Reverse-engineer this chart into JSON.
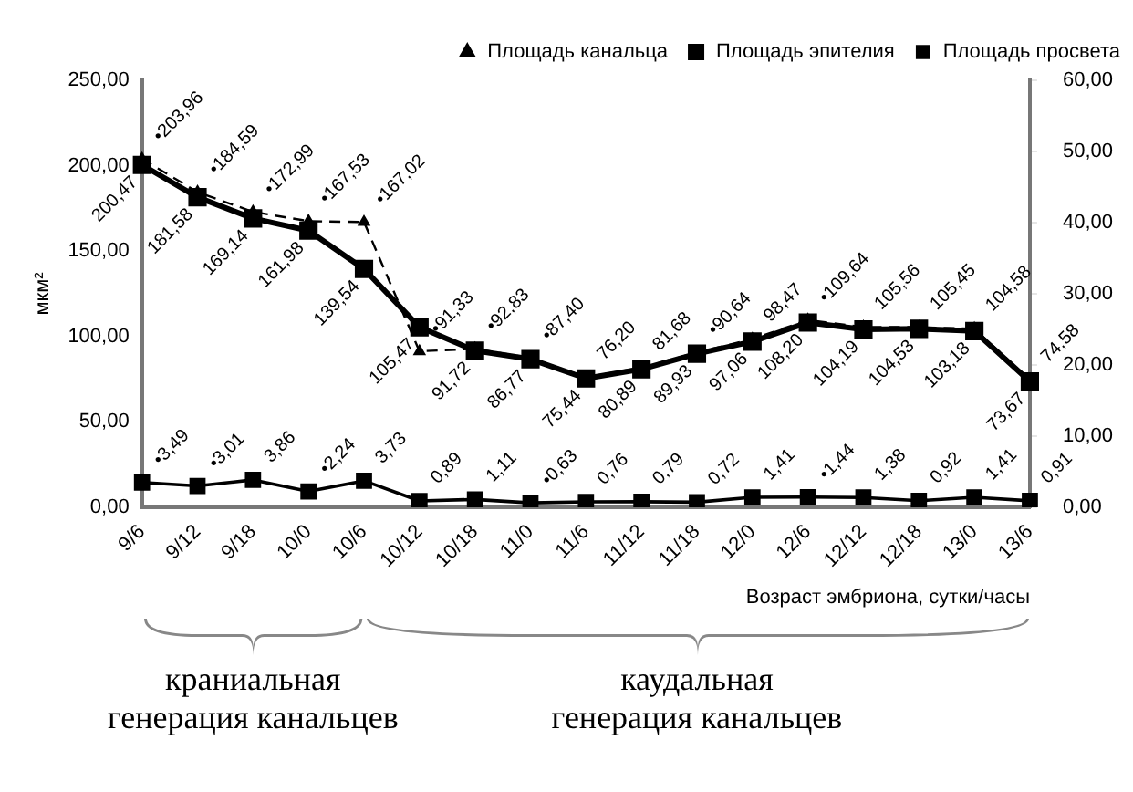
{
  "chart_data": {
    "type": "line",
    "categories": [
      "9/6",
      "9/12",
      "9/18",
      "10/0",
      "10/6",
      "10/12",
      "10/18",
      "11/0",
      "11/6",
      "11/12",
      "11/18",
      "12/0",
      "12/6",
      "12/12",
      "12/18",
      "13/0",
      "13/6"
    ],
    "series": [
      {
        "name": "Площадь канальца",
        "color": "#000000",
        "marker": "triangle",
        "line_style": "dashed",
        "values": [
          203.96,
          184.59,
          172.99,
          167.53,
          167.02,
          91.33,
          92.83,
          87.4,
          76.2,
          81.68,
          90.64,
          98.47,
          109.64,
          105.56,
          105.45,
          104.58,
          74.58
        ],
        "value_labels": [
          "•203,96",
          "•184,59",
          "•172,99",
          "•167,53",
          "•167,02",
          "•91,33",
          "•92,83",
          "•87,40",
          "76,20",
          "81,68",
          "•90,64",
          "98,47",
          "•109,64",
          "105,56",
          "105,45",
          "104,58",
          "74,58"
        ]
      },
      {
        "name": "Площадь эпителия",
        "color": "#000000",
        "marker": "square",
        "line_style": "solid",
        "values": [
          200.47,
          181.58,
          169.14,
          161.98,
          139.54,
          105.47,
          91.72,
          86.77,
          75.44,
          80.89,
          89.93,
          97.06,
          108.2,
          104.19,
          104.53,
          103.18,
          73.67
        ],
        "value_labels": [
          "200,47",
          "181,58",
          "169,14",
          "161,98",
          "139,54",
          "105,47",
          "91,72",
          "86,77",
          "75,44",
          "80,89",
          "89,93",
          "97,06",
          "108,20",
          "104,19",
          "104,53",
          "103,18",
          "73,67"
        ]
      },
      {
        "name": "Площадь просвета",
        "color": "#000000",
        "marker": "square",
        "line_style": "solid",
        "axis": "y2",
        "values": [
          3.49,
          3.01,
          3.86,
          2.24,
          3.73,
          0.89,
          1.11,
          0.63,
          0.76,
          0.79,
          0.72,
          1.41,
          1.44,
          1.38,
          0.92,
          1.41,
          0.91
        ],
        "value_labels": [
          "•3,49",
          "•3,01",
          "3,86",
          "•2,24",
          "3,73",
          "0,89",
          "1,11",
          "•0,63",
          "0,76",
          "0,79",
          "0,72",
          "1,41",
          "•1,44",
          "1,38",
          "0,92",
          "1,41",
          "0,91"
        ]
      }
    ],
    "ylabel": "мкм²",
    "xlabel": "Возраст эмбриона, сутки/часы",
    "ylim": [
      0,
      250
    ],
    "yticks": [
      {
        "value": 0,
        "label": "0,00"
      },
      {
        "value": 50,
        "label": "50,00"
      },
      {
        "value": 100,
        "label": "100,00"
      },
      {
        "value": 150,
        "label": "150,00"
      },
      {
        "value": 200,
        "label": "200,00"
      },
      {
        "value": 250,
        "label": "250,00"
      }
    ],
    "y2lim": [
      0,
      60
    ],
    "y2ticks": [
      {
        "value": 0,
        "label": "0,00"
      },
      {
        "value": 10,
        "label": "10,00"
      },
      {
        "value": 20,
        "label": "20,00"
      },
      {
        "value": 30,
        "label": "30,00"
      },
      {
        "value": 40,
        "label": "40,00"
      },
      {
        "value": 50,
        "label": "50,00"
      },
      {
        "value": 60,
        "label": "60,00"
      }
    ],
    "annotations": [
      "краниальная генерация канальцев",
      "каудальная генерация канальцев"
    ],
    "legend": "top right",
    "grid": false
  }
}
